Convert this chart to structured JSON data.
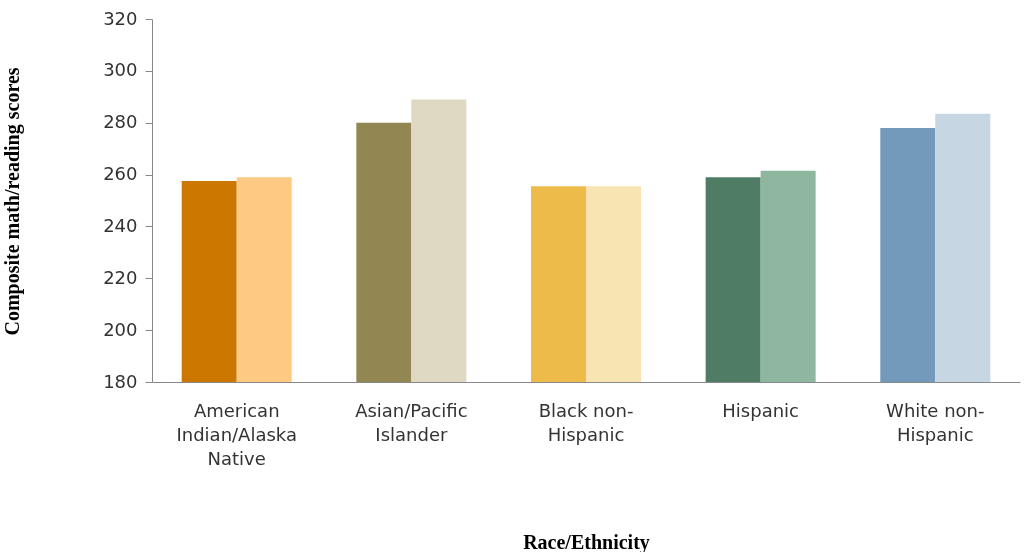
{
  "chart_data": {
    "type": "bar",
    "xlabel": "Race/Ethnicity",
    "ylabel": "Composite math/reading scores",
    "categories": [
      "American Indian/Alaska Native",
      "Asian/Pacific Islander",
      "Black non-Hispanic",
      "Hispanic",
      "White non-Hispanic"
    ],
    "series": [
      {
        "values": [
          257.5,
          280,
          255.5,
          259,
          278
        ],
        "colors": [
          "#cc7700",
          "#928752",
          "#edbb4a",
          "#4f7c65",
          "#739abb"
        ]
      },
      {
        "values": [
          259,
          289,
          255.5,
          261.5,
          283.5
        ],
        "colors": [
          "#fec982",
          "#dfd9c3",
          "#f8e3b2",
          "#8fb7a0",
          "#c6d6e3"
        ]
      }
    ],
    "ylim": [
      180,
      320
    ],
    "yticks": [
      180,
      200,
      220,
      240,
      260,
      280,
      300,
      320
    ],
    "grid": false,
    "legend": false
  }
}
